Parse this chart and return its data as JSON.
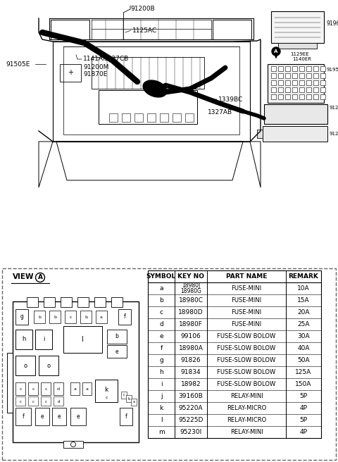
{
  "bg_color": "#ffffff",
  "table_headers": [
    "SYMBOL",
    "KEY NO",
    "PART NAME",
    "REMARK"
  ],
  "table_rows": [
    [
      "a",
      "18980J\n18980G",
      "FUSE-MINI",
      "10A"
    ],
    [
      "b",
      "18980C",
      "FUSE-MINI",
      "15A"
    ],
    [
      "c",
      "18980D",
      "FUSE-MINI",
      "20A"
    ],
    [
      "d",
      "18980F",
      "FUSE-MINI",
      "25A"
    ],
    [
      "e",
      "99106",
      "FUSE-SLOW BOLOW",
      "30A"
    ],
    [
      "f",
      "18980A",
      "FUSE-SLOW BOLOW",
      "40A"
    ],
    [
      "g",
      "91826",
      "FUSE-SLOW BOLOW",
      "50A"
    ],
    [
      "h",
      "91834",
      "FUSE-SLOW BOLOW",
      "125A"
    ],
    [
      "i",
      "18982",
      "FUSE-SLOW BOLOW",
      "150A"
    ],
    [
      "j",
      "39160B",
      "RELAY-MINI",
      "5P"
    ],
    [
      "k",
      "95220A",
      "RELAY-MICRO",
      "4P"
    ],
    [
      "l",
      "95225D",
      "RELAY-MICRO",
      "5P"
    ],
    [
      "m",
      "95230I",
      "RELAY-MINI",
      "4P"
    ]
  ]
}
